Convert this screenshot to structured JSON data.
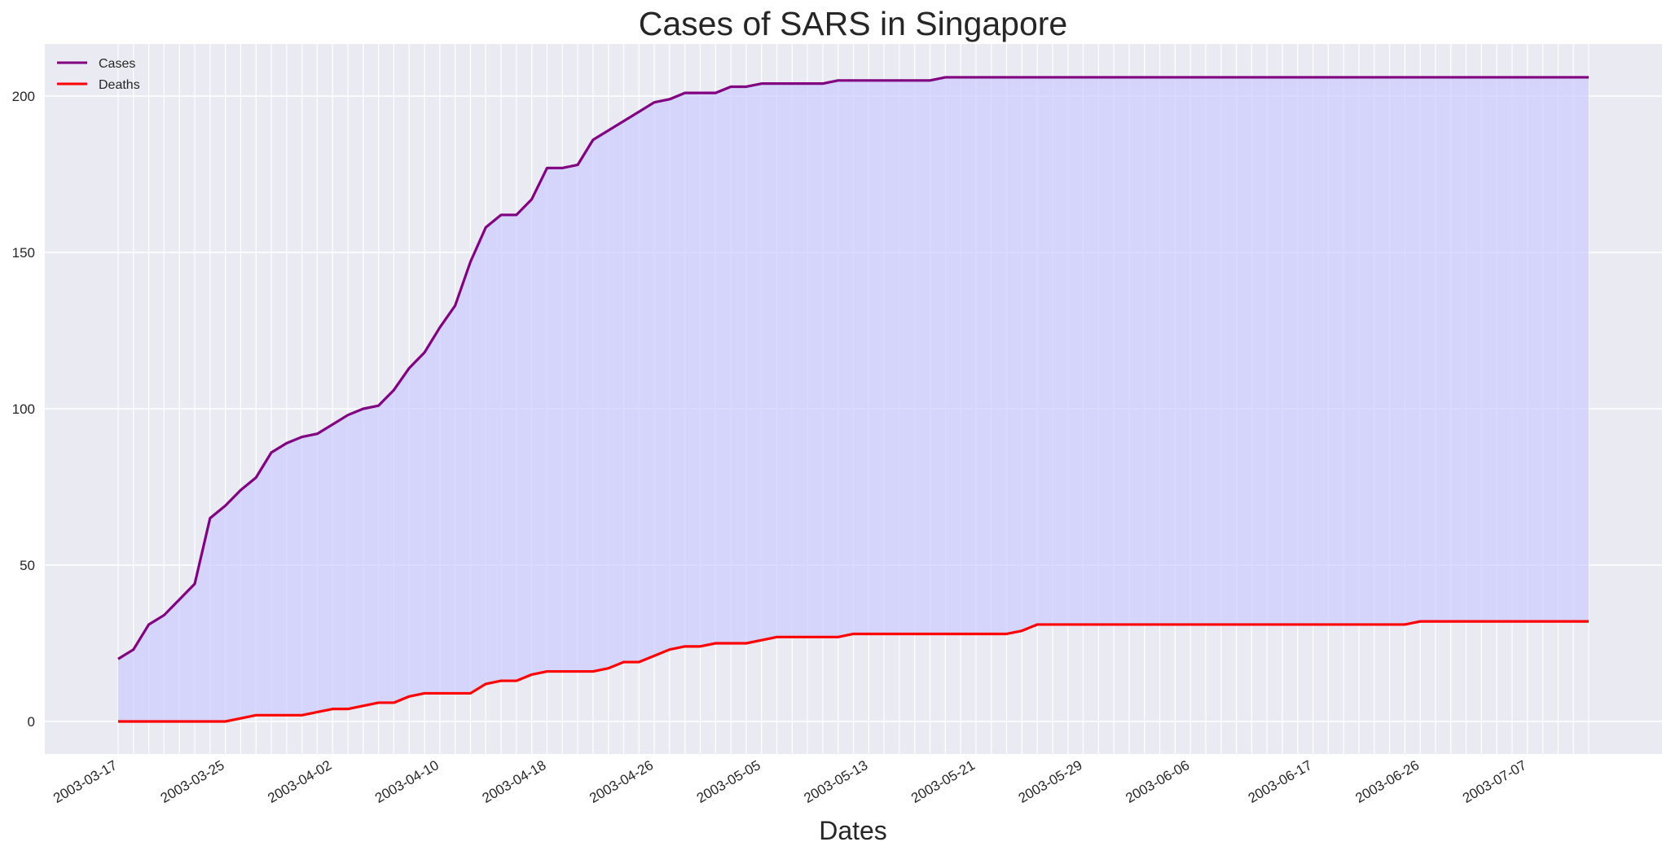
{
  "chart_data": {
    "type": "area",
    "title": "Cases of SARS in Singapore",
    "xlabel": "Dates",
    "ylabel": "",
    "ylim": [
      -10,
      216
    ],
    "yticks": [
      0,
      50,
      100,
      150,
      200
    ],
    "grid": true,
    "legend": "top-left",
    "x": [
      "2003-03-17",
      "2003-03-18",
      "2003-03-19",
      "2003-03-20",
      "2003-03-21",
      "2003-03-22",
      "2003-03-24",
      "2003-03-25",
      "2003-03-26",
      "2003-03-27",
      "2003-03-28",
      "2003-03-29",
      "2003-03-31",
      "2003-04-01",
      "2003-04-02",
      "2003-04-03",
      "2003-04-04",
      "2003-04-05",
      "2003-04-07",
      "2003-04-08",
      "2003-04-09",
      "2003-04-10",
      "2003-04-11",
      "2003-04-12",
      "2003-04-14",
      "2003-04-15",
      "2003-04-16",
      "2003-04-17",
      "2003-04-18",
      "2003-04-19",
      "2003-04-21",
      "2003-04-22",
      "2003-04-23",
      "2003-04-24",
      "2003-04-25",
      "2003-04-26",
      "2003-04-28",
      "2003-04-29",
      "2003-04-30",
      "2003-05-01",
      "2003-05-02",
      "2003-05-03",
      "2003-05-05",
      "2003-05-06",
      "2003-05-07",
      "2003-05-08",
      "2003-05-09",
      "2003-05-10",
      "2003-05-12",
      "2003-05-13",
      "2003-05-14",
      "2003-05-15",
      "2003-05-16",
      "2003-05-17",
      "2003-05-19",
      "2003-05-20",
      "2003-05-21",
      "2003-05-22",
      "2003-05-23",
      "2003-05-24",
      "2003-05-26",
      "2003-05-27",
      "2003-05-28",
      "2003-05-29",
      "2003-05-30",
      "2003-05-31",
      "2003-06-02",
      "2003-06-03",
      "2003-06-04",
      "2003-06-05",
      "2003-06-06",
      "2003-06-07",
      "2003-06-09",
      "2003-06-10",
      "2003-06-11",
      "2003-06-12",
      "2003-06-13",
      "2003-06-16",
      "2003-06-17",
      "2003-06-18",
      "2003-06-19",
      "2003-06-20",
      "2003-06-23",
      "2003-06-24",
      "2003-06-25",
      "2003-06-26",
      "2003-06-27",
      "2003-06-30",
      "2003-07-01",
      "2003-07-02",
      "2003-07-03",
      "2003-07-04",
      "2003-07-07",
      "2003-07-08",
      "2003-07-09",
      "2003-07-10",
      "2003-07-11"
    ],
    "xtick_labels": [
      "2003-03-17",
      "2003-03-25",
      "2003-04-02",
      "2003-04-10",
      "2003-04-18",
      "2003-04-26",
      "2003-05-05",
      "2003-05-13",
      "2003-05-21",
      "2003-05-29",
      "2003-06-06",
      "2003-06-17",
      "2003-06-26",
      "2003-07-07"
    ],
    "series": [
      {
        "name": "Cases",
        "color": "#800080",
        "values": [
          20,
          23,
          31,
          34,
          39,
          44,
          65,
          69,
          74,
          78,
          86,
          89,
          91,
          92,
          95,
          98,
          100,
          101,
          106,
          113,
          118,
          126,
          133,
          147,
          158,
          162,
          162,
          167,
          177,
          177,
          178,
          186,
          189,
          192,
          195,
          198,
          199,
          201,
          201,
          201,
          203,
          203,
          204,
          204,
          204,
          204,
          204,
          205,
          205,
          205,
          205,
          205,
          205,
          205,
          206,
          206,
          206,
          206,
          206,
          206,
          206,
          206,
          206,
          206,
          206,
          206,
          206,
          206,
          206,
          206,
          206,
          206,
          206,
          206,
          206,
          206,
          206,
          206,
          206,
          206,
          206,
          206,
          206,
          206,
          206,
          206,
          206,
          206,
          206,
          206,
          206,
          206,
          206,
          206,
          206,
          206,
          206
        ]
      },
      {
        "name": "Deaths",
        "color": "#ff0000",
        "values": [
          0,
          0,
          0,
          0,
          0,
          0,
          0,
          0,
          1,
          2,
          2,
          2,
          2,
          3,
          4,
          4,
          5,
          6,
          6,
          8,
          9,
          9,
          9,
          9,
          12,
          13,
          13,
          15,
          16,
          16,
          16,
          16,
          17,
          19,
          19,
          21,
          23,
          24,
          24,
          25,
          25,
          25,
          26,
          27,
          27,
          27,
          27,
          27,
          28,
          28,
          28,
          28,
          28,
          28,
          28,
          28,
          28,
          28,
          28,
          29,
          31,
          31,
          31,
          31,
          31,
          31,
          31,
          31,
          31,
          31,
          31,
          31,
          31,
          31,
          31,
          31,
          31,
          31,
          31,
          31,
          31,
          31,
          31,
          31,
          31,
          32,
          32,
          32,
          32,
          32,
          32,
          32,
          32,
          32,
          32,
          32,
          32
        ]
      }
    ],
    "fill_between_color": "#ccccff"
  }
}
